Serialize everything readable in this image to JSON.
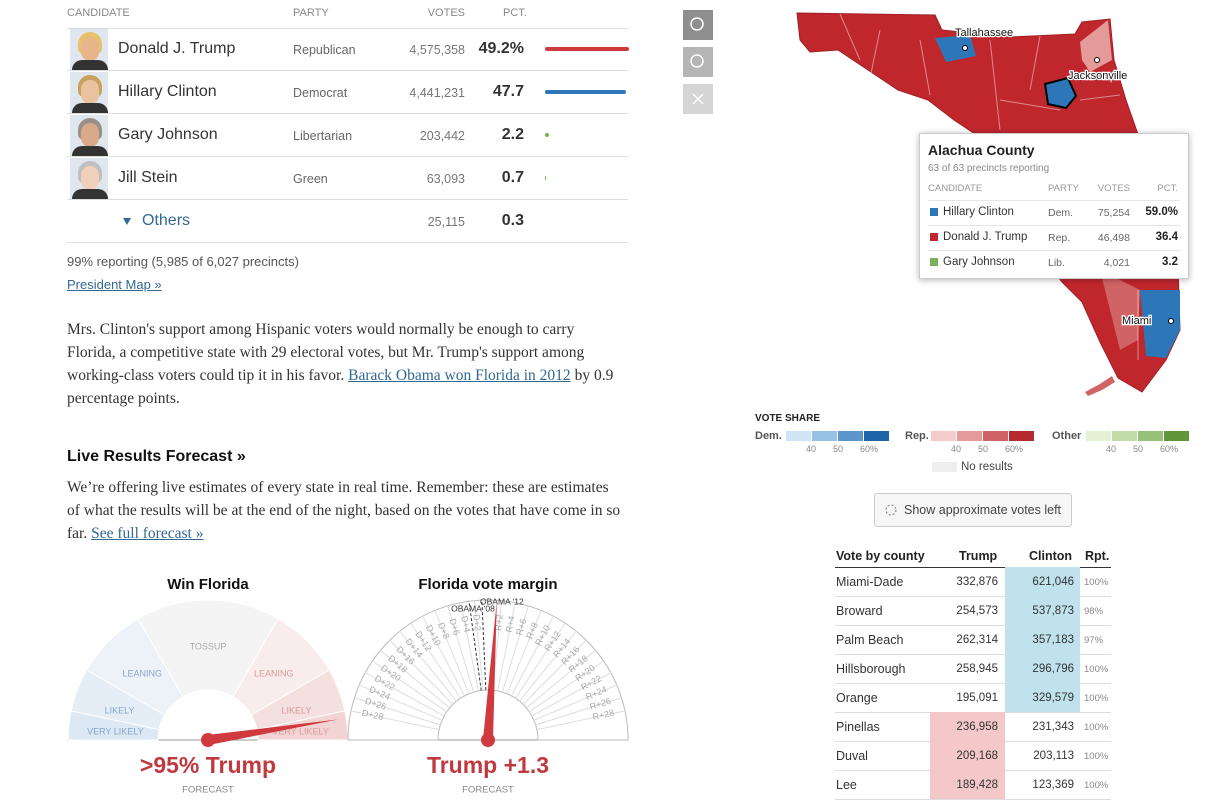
{
  "results": {
    "header": {
      "candidate": "CANDIDATE",
      "party": "PARTY",
      "votes": "VOTES",
      "pct": "PCT."
    },
    "rows": [
      {
        "name": "Donald J. Trump",
        "party": "Republican",
        "votes": "4,575,358",
        "pct": 49.2,
        "pct_label": "49.2%",
        "color": "#d0393e"
      },
      {
        "name": "Hillary Clinton",
        "party": "Democrat",
        "votes": "4,441,231",
        "pct": 47.7,
        "color": "#2d77b8"
      },
      {
        "name": "Gary Johnson",
        "party": "Libertarian",
        "votes": "203,442",
        "pct": 2.2,
        "color": "#7cae5c"
      },
      {
        "name": "Jill Stein",
        "party": "Green",
        "votes": "63,093",
        "pct": 0.7,
        "color": "#7cae5c"
      }
    ],
    "others": {
      "name": "Others",
      "votes": "25,115",
      "pct": 0.3
    }
  },
  "reporting": "99% reporting (5,985 of 6,027 precincts)",
  "map_link": "President Map »",
  "intro": {
    "before": "Mrs. Clinton's support among Hispanic voters would normally be enough to carry Florida, a competitive state with 29 electoral votes, but Mr. Trump's support among working-class voters could tip it in his favor. ",
    "link": "Barack Obama won Florida in 2012",
    "after": " by 0.9 percentage points."
  },
  "forecast": {
    "heading": "Live Results Forecast »",
    "text": "We’re offering live estimates of every state in real time. Remember: these are estimates of what the results will be at the end of the night, based on the votes that have come in so far. ",
    "link": "See full forecast »"
  },
  "gauges": [
    {
      "title": "Win Florida",
      "labels": [
        "VERY LIKELY",
        "LIKELY",
        "LEANING",
        "TOSSUP",
        "LEANING",
        "LIKELY",
        "VERY LIKELY"
      ],
      "value": 95,
      "value_label": ">95% Trump",
      "note": "FORECAST"
    },
    {
      "title": "Florida vote margin",
      "references": [
        {
          "label": "OBAMA '08",
          "value": -2.8
        },
        {
          "label": "OBAMA '12",
          "value": -0.9
        }
      ],
      "ticks": [
        {
          "value": -28,
          "label": "D+28"
        },
        {
          "value": -26,
          "label": "D+26"
        },
        {
          "value": -24,
          "label": "D+24"
        },
        {
          "value": -22,
          "label": "D+22"
        },
        {
          "value": -20,
          "label": "D+20"
        },
        {
          "value": -18,
          "label": "D+18"
        },
        {
          "value": -16,
          "label": "D+16"
        },
        {
          "value": -14,
          "label": "D+14"
        },
        {
          "value": -12,
          "label": "D+12"
        },
        {
          "value": -10,
          "label": "D+10"
        },
        {
          "value": -8,
          "label": "D+8"
        },
        {
          "value": -6,
          "label": "D+6"
        },
        {
          "value": -4,
          "label": "D+4"
        },
        {
          "value": -2,
          "label": "D+2"
        },
        {
          "value": 2,
          "label": "R+2"
        },
        {
          "value": 4,
          "label": "R+4"
        },
        {
          "value": 6,
          "label": "R+6"
        },
        {
          "value": 8,
          "label": "R+8"
        },
        {
          "value": 10,
          "label": "R+10"
        },
        {
          "value": 12,
          "label": "R+12"
        },
        {
          "value": 14,
          "label": "R+14"
        },
        {
          "value": 16,
          "label": "R+16"
        },
        {
          "value": 18,
          "label": "R+18"
        },
        {
          "value": 20,
          "label": "R+20"
        },
        {
          "value": 22,
          "label": "R+22"
        },
        {
          "value": 24,
          "label": "R+24"
        },
        {
          "value": 26,
          "label": "R+26"
        },
        {
          "value": 28,
          "label": "R+28"
        }
      ],
      "value": 1.3,
      "value_label": "Trump +1.3",
      "note": "FORECAST"
    }
  ],
  "map": {
    "cities": [
      "Tallahassee",
      "Jacksonville",
      "Miami"
    ],
    "tooltip": {
      "title": "Alachua County",
      "subtitle": "63 of 63 precincts reporting",
      "header": [
        "CANDIDATE",
        "PARTY",
        "VOTES",
        "PCT."
      ],
      "rows": [
        {
          "name": "Hillary Clinton",
          "party": "Dem.",
          "votes": "75,254",
          "pct": "59.0%",
          "color": "#2d77b8"
        },
        {
          "name": "Donald J. Trump",
          "party": "Rep.",
          "votes": "46,498",
          "pct": "36.4",
          "color": "#c0272d"
        },
        {
          "name": "Gary Johnson",
          "party": "Lib.",
          "votes": "4,021",
          "pct": "3.2",
          "color": "#7cae5c"
        }
      ]
    }
  },
  "legend": {
    "title": "VOTE SHARE",
    "groups": [
      {
        "name": "Dem.",
        "colors": [
          "#cfe5f5",
          "#98c2e4",
          "#5b95c9",
          "#1f66a8"
        ]
      },
      {
        "name": "Rep.",
        "colors": [
          "#f4cccc",
          "#e59a9a",
          "#d06464",
          "#b52a30"
        ]
      },
      {
        "name": "Other",
        "colors": [
          "#e3f0d3",
          "#c2dca9",
          "#97c07a",
          "#5f9639"
        ]
      }
    ],
    "ticks": [
      "40",
      "50",
      "60%"
    ],
    "no_results": "No results"
  },
  "button": "Show approximate votes left",
  "county_table": {
    "header": [
      "Vote by county",
      "Trump",
      "Clinton",
      "Rpt."
    ],
    "rows": [
      [
        "Miami-Dade",
        "332,876",
        "621,046",
        "100%"
      ],
      [
        "Broward",
        "254,573",
        "537,873",
        "98%"
      ],
      [
        "Palm Beach",
        "262,314",
        "357,183",
        "97%"
      ],
      [
        "Hillsborough",
        "258,945",
        "296,796",
        "100%"
      ],
      [
        "Orange",
        "195,091",
        "329,579",
        "100%"
      ],
      [
        "Pinellas",
        "236,958",
        "231,343",
        "100%"
      ],
      [
        "Duval",
        "209,168",
        "203,113",
        "100%"
      ],
      [
        "Lee",
        "189,428",
        "123,369",
        "100%"
      ]
    ]
  }
}
